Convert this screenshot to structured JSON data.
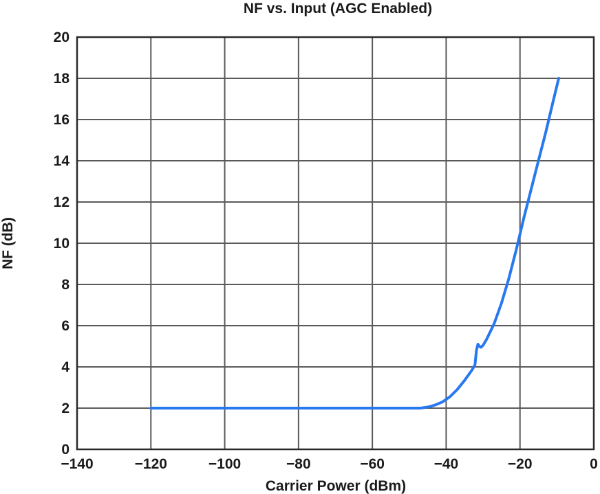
{
  "chart_data": {
    "type": "line",
    "title": "NF vs. Input (AGC Enabled)",
    "xlabel": "Carrier Power (dBm)",
    "ylabel": "NF (dB)",
    "xlim": [
      -140,
      0
    ],
    "ylim": [
      0,
      20
    ],
    "x_ticks": [
      -140,
      -120,
      -100,
      -80,
      -60,
      -40,
      -20,
      0
    ],
    "x_tick_labels": [
      "−140",
      "−120",
      "−100",
      "−80",
      "−60",
      "−40",
      "−20",
      "0"
    ],
    "y_ticks": [
      0,
      2,
      4,
      6,
      8,
      10,
      12,
      14,
      16,
      18,
      20
    ],
    "y_tick_labels": [
      "0",
      "2",
      "4",
      "6",
      "8",
      "10",
      "12",
      "14",
      "16",
      "18",
      "20"
    ],
    "grid": true,
    "series": [
      {
        "name": "NF",
        "color": "#2878f0",
        "x": [
          -120,
          -100,
          -80,
          -60,
          -50,
          -47,
          -45,
          -43,
          -41,
          -39,
          -37,
          -35,
          -33,
          -32.2,
          -31.8,
          -31.4,
          -31.0,
          -30.6,
          -30.0,
          -29.0,
          -27.0,
          -25.0,
          -23.0,
          -21.0,
          -19.0,
          -17.0,
          -15.0,
          -13.0,
          -11.0,
          -9.5
        ],
        "y": [
          2,
          2,
          2,
          2,
          2,
          2.0,
          2.05,
          2.15,
          2.3,
          2.55,
          2.9,
          3.35,
          3.85,
          4.1,
          4.8,
          5.1,
          5.0,
          4.95,
          5.05,
          5.35,
          6.1,
          7.1,
          8.3,
          9.7,
          11.2,
          12.6,
          14.0,
          15.4,
          16.9,
          18.0
        ]
      }
    ]
  }
}
